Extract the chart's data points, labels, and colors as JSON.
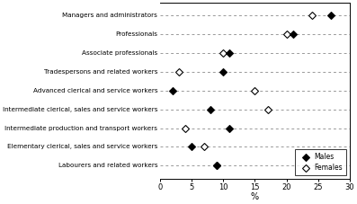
{
  "categories": [
    "Managers and administrators",
    "Professionals",
    "Associate professionals",
    "Tradespersons and related workers",
    "Advanced clerical and service workers",
    "Intermediate clerical, sales and service workers",
    "Intermediate production and transport workers",
    "Elementary clerical, sales and service workers",
    "Labourers and related workers"
  ],
  "males": [
    27,
    21,
    11,
    10,
    2,
    8,
    11,
    5,
    9
  ],
  "females": [
    24,
    20,
    10,
    3,
    15,
    17,
    4,
    7,
    9
  ],
  "xlim": [
    0,
    30
  ],
  "xticks": [
    0,
    5,
    10,
    15,
    20,
    25,
    30
  ],
  "xlabel": "%",
  "bg_color": "#ffffff",
  "dash_color": "#999999",
  "marker_size": 4.5
}
